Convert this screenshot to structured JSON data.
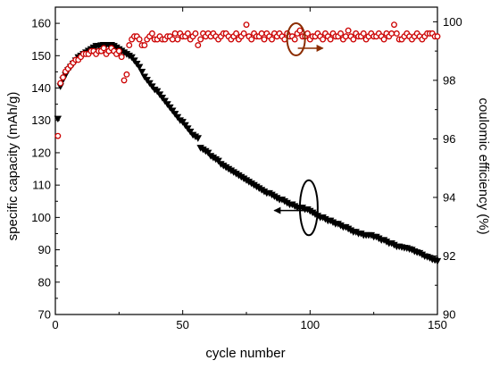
{
  "chart_data": {
    "type": "scatter",
    "x_label": "cycle number",
    "x_range": [
      0,
      150
    ],
    "x_ticks": [
      "0",
      "50",
      "100",
      "150"
    ],
    "y_left_label": "specific capacity (mAh/g)",
    "y_left_range": [
      70,
      165
    ],
    "y_left_ticks": [
      "70",
      "80",
      "90",
      "100",
      "110",
      "120",
      "130",
      "140",
      "150",
      "160"
    ],
    "y_right_label": "coulomic efficiency (%)",
    "y_right_range": [
      90,
      100.5
    ],
    "y_right_ticks": [
      "90",
      "92",
      "94",
      "96",
      "98",
      "100"
    ],
    "grid": false,
    "legend": "none",
    "series": [
      {
        "axis": "left",
        "marker": "filled-triangle-down",
        "color": "#000000",
        "x": [
          1,
          2,
          3,
          4,
          5,
          6,
          7,
          8,
          9,
          10,
          11,
          12,
          13,
          14,
          15,
          16,
          17,
          18,
          19,
          20,
          21,
          22,
          23,
          24,
          25,
          26,
          27,
          28,
          29,
          30,
          31,
          32,
          33,
          34,
          35,
          36,
          37,
          38,
          39,
          40,
          41,
          42,
          43,
          44,
          45,
          46,
          47,
          48,
          49,
          50,
          51,
          52,
          53,
          54,
          55,
          56,
          57,
          58,
          59,
          60,
          61,
          62,
          63,
          64,
          65,
          66,
          67,
          68,
          69,
          70,
          71,
          72,
          73,
          74,
          75,
          76,
          77,
          78,
          79,
          80,
          81,
          82,
          83,
          84,
          85,
          86,
          87,
          88,
          89,
          90,
          91,
          92,
          93,
          94,
          95,
          96,
          97,
          98,
          99,
          100,
          101,
          102,
          103,
          104,
          105,
          106,
          107,
          108,
          109,
          110,
          111,
          112,
          113,
          114,
          115,
          116,
          117,
          118,
          119,
          120,
          121,
          122,
          123,
          124,
          125,
          126,
          127,
          128,
          129,
          130,
          131,
          132,
          133,
          134,
          135,
          136,
          137,
          138,
          139,
          140,
          141,
          142,
          143,
          144,
          145,
          146,
          147,
          148,
          149,
          150
        ],
        "y": [
          130.5,
          140.5,
          142.5,
          144.0,
          145.5,
          146.5,
          147.5,
          148.5,
          149.5,
          150.0,
          150.5,
          151.0,
          151.5,
          152.0,
          152.5,
          153.0,
          153.0,
          153.2,
          153.3,
          153.3,
          153.3,
          153.3,
          153.0,
          152.5,
          152.0,
          151.5,
          151.0,
          150.5,
          150.0,
          149.5,
          148.5,
          147.5,
          146.5,
          145.0,
          143.5,
          142.5,
          141.5,
          140.5,
          139.5,
          139.0,
          138.0,
          137.0,
          136.0,
          135.0,
          134.0,
          133.0,
          132.0,
          131.0,
          130.0,
          129.5,
          128.5,
          127.5,
          126.5,
          125.5,
          125.0,
          124.5,
          121.5,
          121.0,
          120.5,
          120.0,
          119.0,
          118.5,
          118.0,
          117.5,
          116.5,
          116.0,
          115.5,
          115.0,
          114.5,
          114.0,
          113.5,
          113.0,
          112.5,
          112.0,
          111.5,
          111.0,
          110.5,
          110.0,
          109.5,
          109.0,
          108.5,
          108.0,
          107.5,
          107.5,
          107.0,
          106.5,
          106.0,
          105.5,
          105.5,
          105.0,
          104.5,
          104.0,
          104.0,
          103.5,
          103.0,
          103.0,
          103.0,
          102.5,
          102.5,
          102.0,
          101.5,
          101.0,
          100.5,
          100.0,
          100.0,
          99.5,
          99.0,
          99.0,
          98.5,
          98.0,
          98.0,
          97.5,
          97.0,
          97.0,
          96.5,
          96.0,
          95.5,
          95.5,
          95.0,
          95.0,
          94.5,
          94.5,
          94.5,
          94.5,
          94.0,
          94.0,
          93.5,
          93.0,
          93.0,
          92.5,
          92.0,
          92.0,
          91.5,
          91.0,
          91.0,
          90.8,
          90.6,
          90.5,
          90.2,
          90.0,
          89.5,
          89.2,
          89.0,
          88.5,
          88.0,
          87.8,
          87.5,
          87.0,
          86.8,
          86.5
        ]
      },
      {
        "axis": "right",
        "marker": "hollow-circle",
        "color": "#cc0000",
        "x": [
          1,
          2,
          3,
          4,
          5,
          6,
          7,
          8,
          9,
          10,
          11,
          12,
          13,
          14,
          15,
          16,
          17,
          18,
          19,
          20,
          21,
          22,
          23,
          24,
          25,
          26,
          27,
          28,
          29,
          30,
          31,
          32,
          33,
          34,
          35,
          36,
          37,
          38,
          39,
          40,
          41,
          42,
          43,
          44,
          45,
          46,
          47,
          48,
          49,
          50,
          51,
          52,
          53,
          54,
          55,
          56,
          57,
          58,
          59,
          60,
          61,
          62,
          63,
          64,
          65,
          66,
          67,
          68,
          69,
          70,
          71,
          72,
          73,
          74,
          75,
          76,
          77,
          78,
          79,
          80,
          81,
          82,
          83,
          84,
          85,
          86,
          87,
          88,
          89,
          90,
          91,
          92,
          93,
          94,
          95,
          96,
          97,
          98,
          99,
          100,
          101,
          102,
          103,
          104,
          105,
          106,
          107,
          108,
          109,
          110,
          111,
          112,
          113,
          114,
          115,
          116,
          117,
          118,
          119,
          120,
          121,
          122,
          123,
          124,
          125,
          126,
          127,
          128,
          129,
          130,
          131,
          132,
          133,
          134,
          135,
          136,
          137,
          138,
          139,
          140,
          141,
          142,
          143,
          144,
          145,
          146,
          147,
          148,
          149,
          150
        ],
        "y": [
          96.1,
          97.9,
          98.1,
          98.3,
          98.4,
          98.5,
          98.6,
          98.7,
          98.7,
          98.8,
          98.9,
          98.9,
          98.9,
          99.0,
          99.0,
          98.9,
          99.0,
          99.0,
          99.1,
          98.9,
          99.0,
          99.1,
          99.0,
          98.9,
          99.0,
          98.8,
          98.0,
          98.2,
          99.2,
          99.4,
          99.5,
          99.5,
          99.4,
          99.2,
          99.2,
          99.4,
          99.5,
          99.6,
          99.4,
          99.4,
          99.5,
          99.4,
          99.4,
          99.5,
          99.5,
          99.4,
          99.6,
          99.4,
          99.6,
          99.5,
          99.5,
          99.6,
          99.4,
          99.5,
          99.6,
          99.2,
          99.4,
          99.6,
          99.5,
          99.6,
          99.5,
          99.6,
          99.5,
          99.4,
          99.5,
          99.6,
          99.6,
          99.5,
          99.4,
          99.5,
          99.6,
          99.4,
          99.5,
          99.6,
          99.9,
          99.5,
          99.4,
          99.6,
          99.5,
          99.5,
          99.6,
          99.4,
          99.6,
          99.5,
          99.4,
          99.6,
          99.5,
          99.6,
          99.5,
          99.4,
          99.6,
          99.5,
          99.5,
          99.4,
          99.6,
          99.7,
          99.5,
          99.5,
          99.6,
          99.4,
          99.5,
          99.5,
          99.6,
          99.5,
          99.4,
          99.6,
          99.5,
          99.4,
          99.6,
          99.5,
          99.5,
          99.6,
          99.4,
          99.5,
          99.7,
          99.5,
          99.4,
          99.6,
          99.5,
          99.5,
          99.6,
          99.4,
          99.5,
          99.6,
          99.5,
          99.5,
          99.6,
          99.5,
          99.4,
          99.6,
          99.5,
          99.6,
          99.9,
          99.6,
          99.4,
          99.4,
          99.5,
          99.6,
          99.5,
          99.4,
          99.5,
          99.6,
          99.5,
          99.4,
          99.5,
          99.6,
          99.6,
          99.6,
          99.5,
          99.5
        ]
      }
    ],
    "annotations": [
      {
        "shape": "ellipse",
        "axis": "right",
        "cx": 94.5,
        "cy": 99.4,
        "rx": 3.5,
        "ry": 0.55,
        "color": "#8b2c00",
        "arrow_to_x": 105,
        "arrow_direction": "right"
      },
      {
        "shape": "ellipse",
        "axis": "left",
        "cx": 99.5,
        "cy": 103,
        "rx": 3.5,
        "ry": 8.5,
        "color": "#000000",
        "arrow_to_x": 86,
        "arrow_direction": "left"
      }
    ]
  }
}
